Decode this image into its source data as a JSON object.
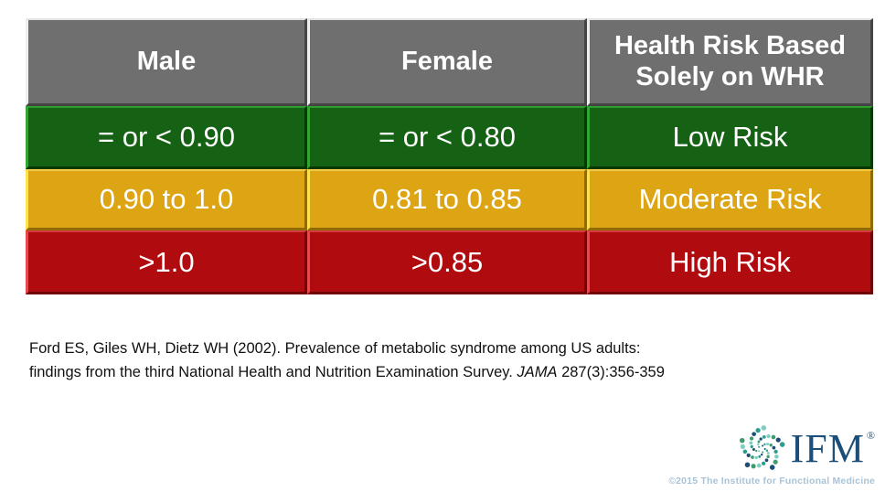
{
  "slide": {
    "table": {
      "headers": [
        "Male",
        "Female",
        "Health Risk Based Solely on WHR"
      ],
      "rows": [
        {
          "male": "= or < 0.90",
          "female": "= or < 0.80",
          "risk": "Low Risk",
          "level": "low"
        },
        {
          "male": "0.90 to 1.0",
          "female": "0.81 to 0.85",
          "risk": "Moderate Risk",
          "level": "moderate"
        },
        {
          "male": ">1.0",
          "female": ">0.85",
          "risk": "High Risk",
          "level": "high"
        }
      ]
    },
    "citation": {
      "line1": "Ford ES, Giles WH, Dietz WH (2002). Prevalence of metabolic syndrome among US adults:",
      "line2_pre": "findings from the third National Health and Nutrition Examination Survey. ",
      "journal": "JAMA",
      "line2_post": " 287(3):356-359"
    },
    "footer": {
      "logo_text": "IFM",
      "registered_mark": "®",
      "copyright": "©2015 The Institute for Functional Medicine"
    }
  },
  "colors": {
    "header_bg": "#6f6f6f",
    "low_bg": "#156215",
    "moderate_bg": "#dda513",
    "high_bg": "#b00c10",
    "cell_text": "#ffffff",
    "citation_text": "#111111",
    "logo_navy": "#1b4e79",
    "logo_teal": "#2a9d8f",
    "logo_seafoam": "#7fcdc0",
    "logo_green": "#3f9d6d",
    "copyright": "#a9c3d6"
  }
}
